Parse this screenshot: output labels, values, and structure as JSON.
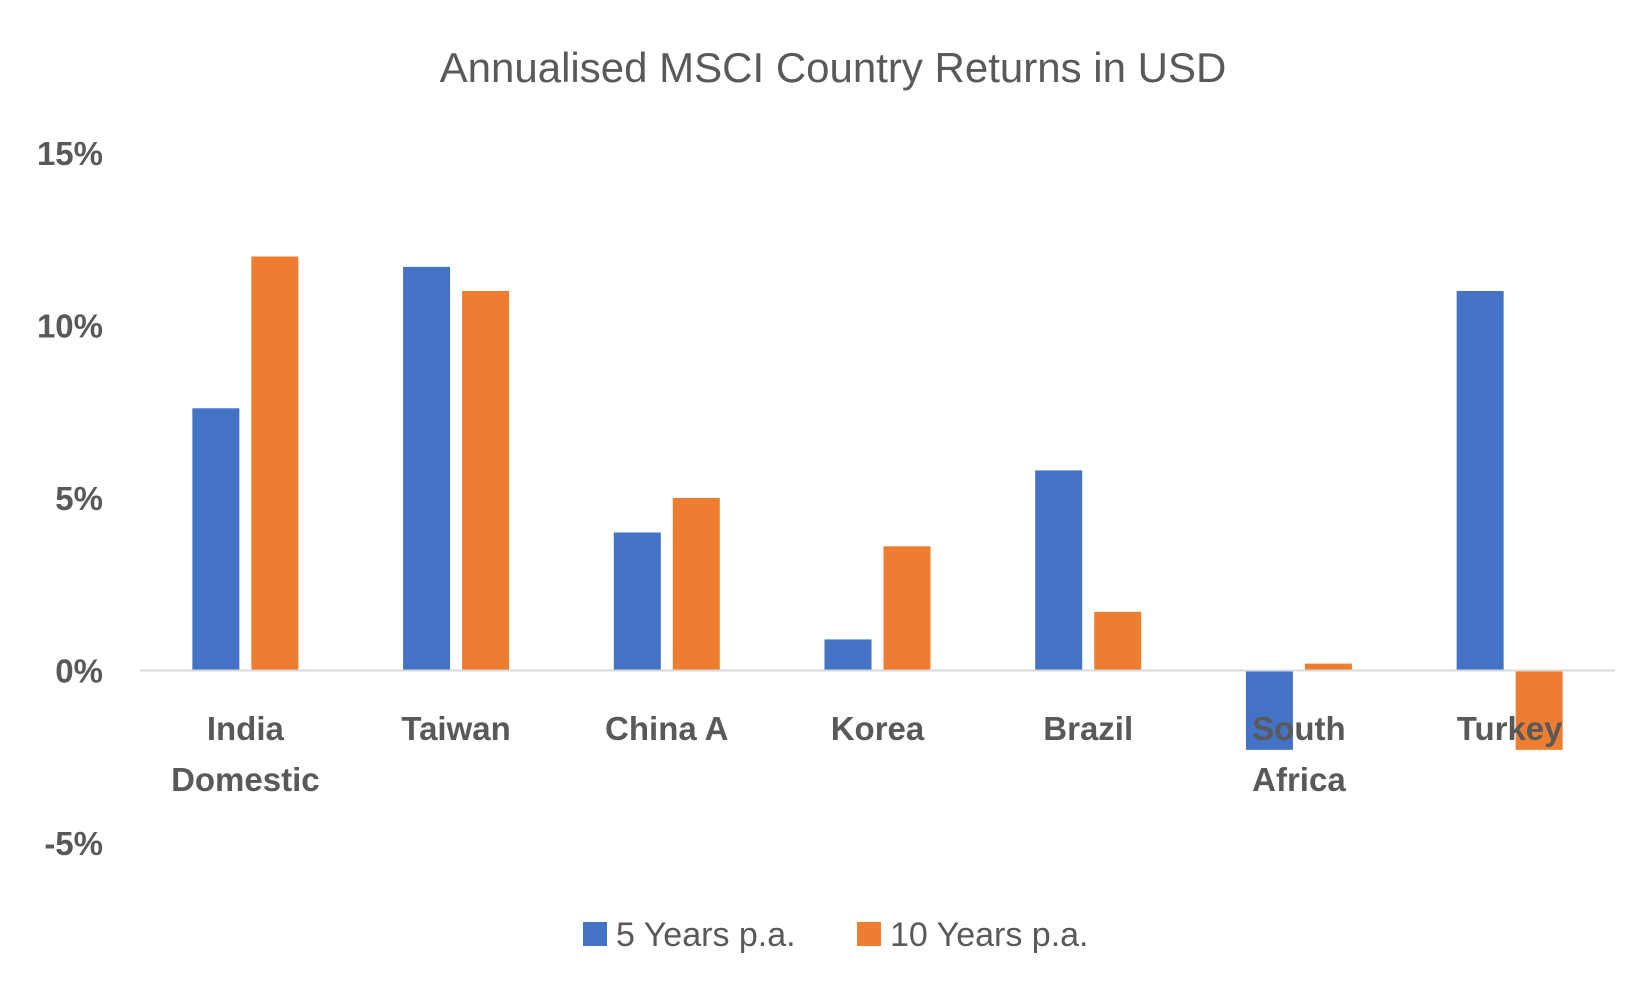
{
  "chart_data": {
    "type": "bar",
    "title": "Annualised MSCI Country Returns in USD",
    "xlabel": "",
    "ylabel": "",
    "categories": [
      [
        "India",
        "Domestic"
      ],
      [
        "Taiwan"
      ],
      [
        "China A"
      ],
      [
        "Korea"
      ],
      [
        "Brazil"
      ],
      [
        "South",
        "Africa"
      ],
      [
        "Turkey"
      ]
    ],
    "series": [
      {
        "name": "5 Years p.a.",
        "color": "#4472C4",
        "values": [
          7.6,
          11.7,
          4.0,
          0.9,
          5.8,
          -2.3,
          11.0
        ]
      },
      {
        "name": "10 Years p.a.",
        "color": "#ED7D31",
        "values": [
          12.0,
          11.0,
          5.0,
          3.6,
          1.7,
          0.2,
          -2.3
        ]
      }
    ],
    "ylim": [
      -5,
      15
    ],
    "yticks": [
      -5,
      0,
      5,
      10,
      15
    ],
    "ytick_labels": [
      "-5%",
      "0%",
      "5%",
      "10%",
      "15%"
    ],
    "grid": false,
    "legend": "bottom"
  }
}
